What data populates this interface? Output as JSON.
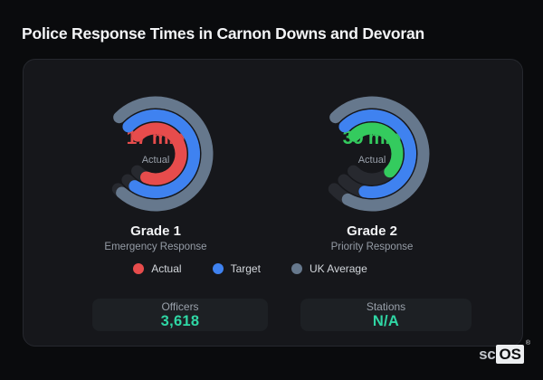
{
  "page": {
    "title": "Police Response Times in Carnon Downs and Devoran"
  },
  "legend": [
    {
      "label": "Actual",
      "color": "#e74c4c"
    },
    {
      "label": "Target",
      "color": "#3f82f0"
    },
    {
      "label": "UK Average",
      "color": "#66788d"
    }
  ],
  "stats": [
    {
      "label": "Officers",
      "value": "3,618"
    },
    {
      "label": "Stations",
      "value": "N/A"
    }
  ],
  "brand": {
    "prefix": "sc",
    "suffix": "OS",
    "registered": "®"
  },
  "chart_data": [
    {
      "type": "gauge",
      "title": "Grade 1",
      "subtitle": "Emergency Response",
      "center_value": "17 min",
      "value_minutes": 17,
      "center_caption": "Actual",
      "value_color": "#e74c4c",
      "track": {
        "color": "#27292f",
        "start_deg": 315,
        "span_deg": 272
      },
      "rings": [
        {
          "name": "UK Average",
          "color": "#66788d",
          "radius": 57,
          "sweep_deg": 266
        },
        {
          "name": "Target",
          "color": "#3f82f0",
          "radius": 42.5,
          "sweep_deg": 258
        },
        {
          "name": "Actual",
          "color": "#e74c4c",
          "radius": 28,
          "sweep_deg": 247
        }
      ],
      "legend_position": "bottom"
    },
    {
      "type": "gauge",
      "title": "Grade 2",
      "subtitle": "Priority Response",
      "center_value": "39 min",
      "value_minutes": 39,
      "center_caption": "Actual",
      "value_color": "#34cb5e",
      "track": {
        "color": "#27292f",
        "start_deg": 315,
        "span_deg": 272
      },
      "rings": [
        {
          "name": "UK Average",
          "color": "#66788d",
          "radius": 57,
          "sweep_deg": 253
        },
        {
          "name": "Target",
          "color": "#3f82f0",
          "radius": 42.5,
          "sweep_deg": 236
        },
        {
          "name": "Actual",
          "color": "#34cb5e",
          "radius": 28,
          "sweep_deg": 180
        }
      ],
      "legend_position": "bottom"
    }
  ]
}
